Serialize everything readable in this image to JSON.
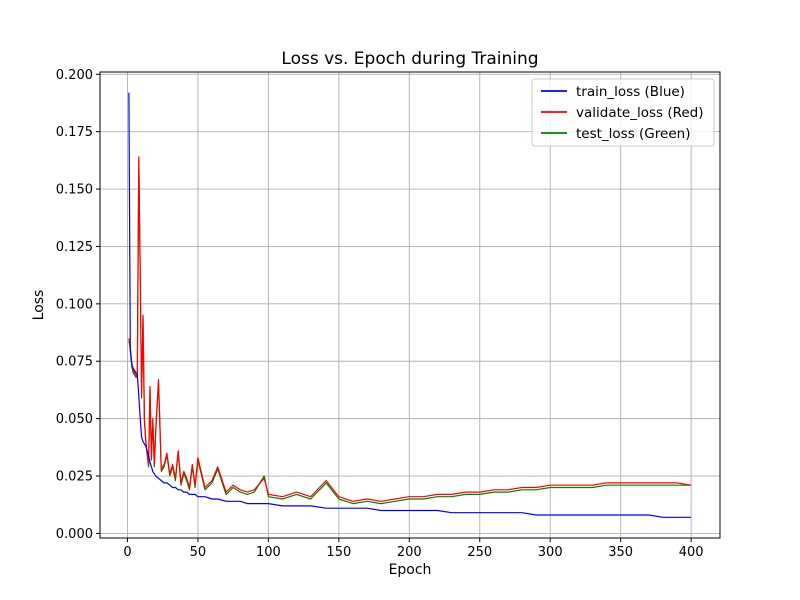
{
  "chart_data": {
    "type": "line",
    "title": "Loss vs. Epoch during Training",
    "xlabel": "Epoch",
    "ylabel": "Loss",
    "xlim": [
      -19.5,
      420.5
    ],
    "ylim": [
      -0.002,
      0.201
    ],
    "x_ticks": [
      0,
      50,
      100,
      150,
      200,
      250,
      300,
      350,
      400
    ],
    "y_ticks": [
      0.0,
      0.025,
      0.05,
      0.075,
      0.1,
      0.125,
      0.15,
      0.175,
      0.2
    ],
    "y_tick_labels": [
      "0.000",
      "0.025",
      "0.050",
      "0.075",
      "0.100",
      "0.125",
      "0.150",
      "0.175",
      "0.200"
    ],
    "grid": true,
    "legend_position": "top-right",
    "x": [
      1,
      2,
      3,
      4,
      5,
      6,
      7,
      8,
      9,
      10,
      11,
      12,
      13,
      14,
      15,
      16,
      17,
      18,
      19,
      20,
      22,
      24,
      26,
      28,
      30,
      32,
      34,
      36,
      38,
      40,
      42,
      44,
      46,
      48,
      50,
      55,
      60,
      64,
      70,
      75,
      80,
      85,
      90,
      97,
      100,
      110,
      120,
      130,
      141,
      150,
      160,
      170,
      180,
      190,
      200,
      210,
      220,
      230,
      240,
      250,
      260,
      270,
      280,
      290,
      300,
      310,
      320,
      330,
      340,
      350,
      360,
      370,
      380,
      390,
      400
    ],
    "series": [
      {
        "name": "train_loss (Blue)",
        "color": "#0000ff",
        "values": [
          0.192,
          0.08,
          0.074,
          0.072,
          0.071,
          0.07,
          0.069,
          0.06,
          0.05,
          0.042,
          0.04,
          0.039,
          0.038,
          0.036,
          0.034,
          0.031,
          0.029,
          0.027,
          0.026,
          0.025,
          0.024,
          0.023,
          0.022,
          0.022,
          0.021,
          0.02,
          0.02,
          0.019,
          0.019,
          0.018,
          0.018,
          0.017,
          0.017,
          0.017,
          0.016,
          0.016,
          0.015,
          0.015,
          0.014,
          0.014,
          0.014,
          0.013,
          0.013,
          0.013,
          0.013,
          0.012,
          0.012,
          0.012,
          0.011,
          0.011,
          0.011,
          0.011,
          0.01,
          0.01,
          0.01,
          0.01,
          0.01,
          0.009,
          0.009,
          0.009,
          0.009,
          0.009,
          0.009,
          0.008,
          0.008,
          0.008,
          0.008,
          0.008,
          0.008,
          0.008,
          0.008,
          0.008,
          0.007,
          0.007,
          0.007
        ]
      },
      {
        "name": "validate_loss (Red)",
        "color": "#ff0000",
        "values": [
          0.085,
          0.081,
          0.074,
          0.071,
          0.07,
          0.069,
          0.068,
          0.164,
          0.114,
          0.06,
          0.095,
          0.05,
          0.04,
          0.035,
          0.03,
          0.064,
          0.033,
          0.05,
          0.03,
          0.045,
          0.067,
          0.028,
          0.03,
          0.035,
          0.026,
          0.03,
          0.024,
          0.036,
          0.022,
          0.027,
          0.024,
          0.02,
          0.03,
          0.021,
          0.033,
          0.02,
          0.023,
          0.029,
          0.018,
          0.021,
          0.019,
          0.018,
          0.019,
          0.024,
          0.017,
          0.016,
          0.018,
          0.016,
          0.023,
          0.016,
          0.014,
          0.015,
          0.014,
          0.015,
          0.016,
          0.016,
          0.017,
          0.017,
          0.018,
          0.018,
          0.019,
          0.019,
          0.02,
          0.02,
          0.021,
          0.021,
          0.021,
          0.021,
          0.022,
          0.022,
          0.022,
          0.022,
          0.022,
          0.022,
          0.021
        ]
      },
      {
        "name": "test_loss (Green)",
        "color": "#008000",
        "values": [
          0.084,
          0.08,
          0.073,
          0.07,
          0.069,
          0.068,
          0.068,
          0.163,
          0.113,
          0.059,
          0.094,
          0.049,
          0.04,
          0.034,
          0.029,
          0.063,
          0.032,
          0.049,
          0.029,
          0.044,
          0.066,
          0.027,
          0.029,
          0.034,
          0.025,
          0.029,
          0.023,
          0.035,
          0.021,
          0.026,
          0.023,
          0.019,
          0.029,
          0.02,
          0.032,
          0.019,
          0.022,
          0.028,
          0.017,
          0.02,
          0.018,
          0.017,
          0.018,
          0.025,
          0.016,
          0.015,
          0.017,
          0.015,
          0.022,
          0.015,
          0.013,
          0.014,
          0.013,
          0.014,
          0.015,
          0.015,
          0.016,
          0.016,
          0.017,
          0.017,
          0.018,
          0.018,
          0.019,
          0.019,
          0.02,
          0.02,
          0.02,
          0.02,
          0.021,
          0.021,
          0.021,
          0.021,
          0.021,
          0.021,
          0.021
        ]
      }
    ]
  }
}
